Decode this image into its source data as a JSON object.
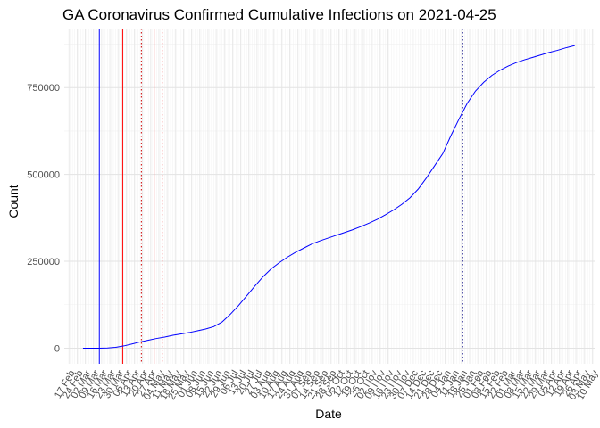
{
  "chart_data": {
    "type": "line",
    "title": "GA Coronavirus Confirmed Cumulative Infections on 2021-04-25",
    "xlabel": "Date",
    "ylabel": "Count",
    "x_range": [
      "2020-02-13",
      "2021-05-12"
    ],
    "ylim": [
      -45000,
      920000
    ],
    "y_ticks": [
      0,
      250000,
      500000,
      750000
    ],
    "x_tick_labels": [
      "17 Feb",
      "24 Feb",
      "02 Mar",
      "09 Mar",
      "16 Mar",
      "23 Mar",
      "30 Mar",
      "06 Apr",
      "13 Apr",
      "20 Apr",
      "27 Apr",
      "04 May",
      "11 May",
      "18 May",
      "25 May",
      "01 Jun",
      "08 Jun",
      "15 Jun",
      "22 Jun",
      "29 Jun",
      "06 Jul",
      "13 Jul",
      "20 Jul",
      "27 Jul",
      "03 Aug",
      "10 Aug",
      "17 Aug",
      "24 Aug",
      "31 Aug",
      "07 Sep",
      "14 Sep",
      "21 Sep",
      "28 Sep",
      "05 Oct",
      "12 Oct",
      "19 Oct",
      "26 Oct",
      "02 Nov",
      "09 Nov",
      "16 Nov",
      "23 Nov",
      "30 Nov",
      "07 Dec",
      "14 Dec",
      "21 Dec",
      "28 Dec",
      "04 Jan",
      "11 Jan",
      "18 Jan",
      "25 Jan",
      "01 Feb",
      "08 Feb",
      "15 Feb",
      "22 Feb",
      "01 Mar",
      "08 Mar",
      "15 Mar",
      "22 Mar",
      "29 Mar",
      "05 Apr",
      "12 Apr",
      "19 Apr",
      "26 Apr",
      "03 May",
      "10 May"
    ],
    "grid": true,
    "series": [
      {
        "color": "#0000ff",
        "points": [
          [
            "2020-02-29",
            0
          ],
          [
            "2020-03-07",
            5
          ],
          [
            "2020-03-14",
            60
          ],
          [
            "2020-03-21",
            500
          ],
          [
            "2020-03-28",
            2600
          ],
          [
            "2020-04-04",
            6500
          ],
          [
            "2020-04-11",
            12000
          ],
          [
            "2020-04-18",
            18000
          ],
          [
            "2020-04-25",
            23000
          ],
          [
            "2020-05-02",
            28000
          ],
          [
            "2020-05-09",
            32000
          ],
          [
            "2020-05-16",
            37000
          ],
          [
            "2020-05-23",
            41000
          ],
          [
            "2020-05-30",
            45000
          ],
          [
            "2020-06-06",
            50000
          ],
          [
            "2020-06-13",
            55000
          ],
          [
            "2020-06-20",
            62000
          ],
          [
            "2020-06-27",
            75000
          ],
          [
            "2020-07-04",
            97000
          ],
          [
            "2020-07-11",
            122000
          ],
          [
            "2020-07-18",
            150000
          ],
          [
            "2020-07-25",
            178000
          ],
          [
            "2020-08-01",
            205000
          ],
          [
            "2020-08-08",
            228000
          ],
          [
            "2020-08-15",
            246000
          ],
          [
            "2020-08-22",
            262000
          ],
          [
            "2020-08-29",
            276000
          ],
          [
            "2020-09-05",
            288000
          ],
          [
            "2020-09-12",
            300000
          ],
          [
            "2020-09-19",
            309000
          ],
          [
            "2020-09-26",
            317000
          ],
          [
            "2020-10-03",
            325000
          ],
          [
            "2020-10-10",
            333000
          ],
          [
            "2020-10-17",
            341000
          ],
          [
            "2020-10-24",
            350000
          ],
          [
            "2020-10-31",
            360000
          ],
          [
            "2020-11-07",
            371000
          ],
          [
            "2020-11-14",
            384000
          ],
          [
            "2020-11-21",
            398000
          ],
          [
            "2020-11-28",
            414000
          ],
          [
            "2020-12-05",
            433000
          ],
          [
            "2020-12-12",
            458000
          ],
          [
            "2020-12-19",
            490000
          ],
          [
            "2020-12-26",
            525000
          ],
          [
            "2021-01-02",
            560000
          ],
          [
            "2021-01-09",
            612000
          ],
          [
            "2021-01-16",
            660000
          ],
          [
            "2021-01-23",
            705000
          ],
          [
            "2021-01-30",
            740000
          ],
          [
            "2021-02-06",
            765000
          ],
          [
            "2021-02-13",
            785000
          ],
          [
            "2021-02-20",
            800000
          ],
          [
            "2021-02-27",
            812000
          ],
          [
            "2021-03-06",
            822000
          ],
          [
            "2021-03-13",
            830000
          ],
          [
            "2021-03-20",
            837000
          ],
          [
            "2021-03-27",
            844000
          ],
          [
            "2021-04-03",
            851000
          ],
          [
            "2021-04-10",
            857000
          ],
          [
            "2021-04-17",
            864000
          ],
          [
            "2021-04-25",
            871000
          ]
        ]
      }
    ],
    "vertical_lines": [
      {
        "x": "2020-03-14",
        "color": "#0000ff",
        "style": "solid"
      },
      {
        "x": "2020-04-03",
        "color": "#ff0000",
        "style": "solid"
      },
      {
        "x": "2020-04-19",
        "color": "#cc0000",
        "style": "dotted"
      },
      {
        "x": "2020-04-30",
        "color": "#f5a0a0",
        "style": "solid"
      },
      {
        "x": "2020-05-07",
        "color": "#f5a0a0",
        "style": "dotted"
      },
      {
        "x": "2021-01-19",
        "color": "#000080",
        "style": "dotted"
      }
    ]
  }
}
